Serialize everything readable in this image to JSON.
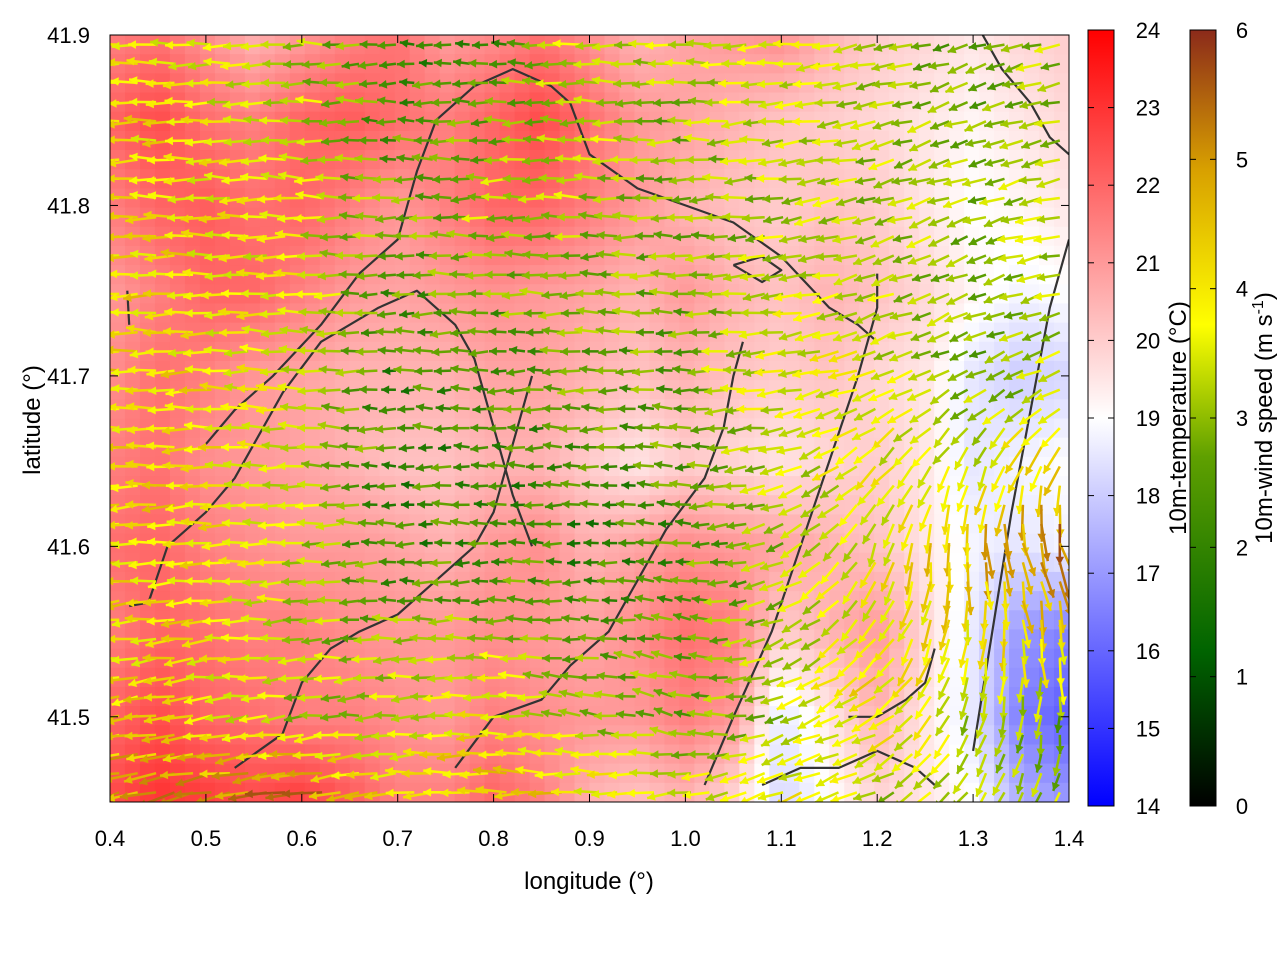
{
  "chart_data": {
    "type": "heatmap",
    "overlay": "wind-vector-field",
    "xlabel": "longitude (°)",
    "ylabel": "latitude (°)",
    "xlim": [
      0.4,
      1.4
    ],
    "ylim": [
      41.45,
      41.9
    ],
    "x_ticks": [
      "0.4",
      "0.5",
      "0.6",
      "0.7",
      "0.8",
      "0.9",
      "1.0",
      "1.1",
      "1.2",
      "1.3",
      "1.4"
    ],
    "y_ticks": [
      "41.5",
      "41.6",
      "41.7",
      "41.8",
      "41.9"
    ],
    "temperature_colorbar": {
      "label": "10m-temperature (°C)",
      "range": [
        14,
        24
      ],
      "ticks": [
        "14",
        "15",
        "16",
        "17",
        "18",
        "19",
        "20",
        "21",
        "22",
        "23",
        "24"
      ],
      "colors": [
        "#0000ff",
        "#ffffff",
        "#ff0000"
      ]
    },
    "wind_colorbar": {
      "label": "10m-wind speed (m s-1)",
      "label_main": "10m-wind speed (m s",
      "label_sup": "-1",
      "label_end": ")",
      "range": [
        0,
        6
      ],
      "ticks": [
        "0",
        "1",
        "2",
        "3",
        "4",
        "5",
        "6"
      ],
      "colors": [
        "#000000",
        "#006400",
        "#5fa000",
        "#ffff00",
        "#d8a000",
        "#8b2a1a"
      ]
    },
    "temperature_field": {
      "lon": [
        0.4,
        0.45,
        0.5,
        0.55,
        0.6,
        0.65,
        0.7,
        0.75,
        0.8,
        0.85,
        0.9,
        0.95,
        1.0,
        1.05,
        1.1,
        1.15,
        1.2,
        1.25,
        1.3,
        1.35,
        1.4
      ],
      "lat": [
        41.9,
        41.85,
        41.8,
        41.75,
        41.7,
        41.65,
        41.6,
        41.55,
        41.5,
        41.45
      ],
      "values": [
        [
          21.5,
          21.8,
          21.2,
          20.5,
          21.0,
          21.5,
          21.8,
          21.0,
          21.3,
          21.8,
          21.2,
          20.5,
          20.8,
          21.0,
          21.2,
          20.5,
          20.0,
          19.8,
          19.5,
          19.8,
          20.0
        ],
        [
          22.0,
          22.5,
          21.8,
          21.5,
          22.0,
          22.2,
          21.8,
          21.5,
          22.0,
          22.5,
          21.8,
          21.0,
          20.8,
          20.5,
          20.2,
          20.0,
          19.8,
          19.5,
          19.2,
          19.5,
          19.8
        ],
        [
          21.5,
          22.0,
          22.2,
          21.8,
          22.0,
          21.5,
          21.0,
          21.5,
          22.0,
          22.0,
          21.5,
          21.0,
          20.5,
          20.2,
          20.0,
          20.2,
          20.0,
          19.5,
          19.0,
          19.2,
          19.5
        ],
        [
          21.0,
          21.5,
          22.0,
          22.0,
          21.5,
          21.0,
          20.8,
          21.0,
          21.2,
          21.0,
          20.8,
          20.5,
          21.0,
          20.5,
          20.2,
          20.5,
          20.2,
          19.8,
          19.2,
          18.8,
          19.0
        ],
        [
          21.2,
          21.8,
          21.5,
          21.0,
          20.8,
          20.5,
          20.5,
          20.5,
          20.8,
          20.8,
          20.5,
          20.2,
          20.5,
          20.2,
          20.0,
          20.2,
          19.8,
          19.5,
          18.5,
          18.0,
          18.2
        ],
        [
          21.5,
          21.8,
          21.2,
          21.0,
          20.8,
          20.5,
          20.2,
          20.2,
          20.5,
          20.5,
          20.0,
          19.5,
          20.0,
          19.8,
          19.5,
          19.8,
          20.0,
          19.5,
          18.5,
          18.8,
          19.0
        ],
        [
          21.8,
          22.0,
          21.5,
          21.2,
          21.0,
          21.0,
          20.8,
          20.5,
          21.0,
          21.2,
          20.5,
          20.8,
          21.2,
          21.0,
          20.8,
          20.5,
          20.2,
          19.5,
          18.8,
          18.5,
          18.8
        ],
        [
          21.5,
          22.0,
          21.8,
          21.5,
          21.5,
          21.2,
          21.0,
          21.0,
          21.2,
          21.0,
          20.8,
          21.2,
          21.8,
          21.5,
          20.0,
          20.5,
          21.0,
          19.8,
          18.5,
          17.0,
          16.5
        ],
        [
          22.0,
          22.5,
          22.0,
          21.8,
          21.5,
          21.5,
          21.2,
          21.0,
          21.5,
          21.2,
          21.0,
          21.0,
          21.5,
          21.0,
          18.5,
          19.5,
          20.5,
          19.5,
          18.5,
          16.5,
          15.8
        ],
        [
          22.5,
          23.0,
          22.8,
          22.5,
          22.8,
          22.2,
          21.5,
          21.5,
          22.0,
          21.5,
          20.5,
          20.2,
          20.5,
          19.8,
          18.2,
          19.0,
          19.8,
          19.5,
          19.0,
          17.5,
          17.0
        ]
      ]
    },
    "wind_field": {
      "lon": [
        0.4,
        0.5,
        0.6,
        0.7,
        0.8,
        0.9,
        1.0,
        1.1,
        1.2,
        1.3,
        1.4
      ],
      "lat": [
        41.9,
        41.8,
        41.7,
        41.6,
        41.5,
        41.45
      ],
      "speed": [
        [
          4.0,
          3.5,
          3.0,
          2.0,
          2.0,
          3.5,
          3.0,
          3.5,
          3.0,
          2.5,
          3.0
        ],
        [
          4.0,
          3.8,
          3.5,
          2.5,
          3.0,
          3.0,
          2.5,
          3.0,
          3.0,
          2.8,
          3.0
        ],
        [
          4.0,
          3.8,
          3.5,
          2.0,
          2.0,
          2.5,
          2.5,
          3.5,
          3.5,
          2.5,
          3.0
        ],
        [
          3.8,
          4.0,
          3.2,
          2.0,
          2.0,
          1.8,
          2.2,
          2.8,
          3.5,
          4.5,
          5.5
        ],
        [
          4.0,
          3.8,
          3.0,
          3.2,
          3.8,
          3.0,
          2.5,
          3.0,
          4.0,
          3.0,
          2.5
        ],
        [
          5.0,
          5.0,
          5.5,
          4.0,
          4.5,
          4.0,
          3.5,
          3.8,
          3.0,
          3.2,
          3.0
        ]
      ],
      "direction_deg": [
        [
          270,
          270,
          270,
          270,
          270,
          270,
          270,
          265,
          260,
          250,
          260
        ],
        [
          270,
          270,
          272,
          270,
          270,
          270,
          270,
          265,
          255,
          250,
          260
        ],
        [
          270,
          270,
          272,
          270,
          270,
          270,
          270,
          265,
          250,
          245,
          250
        ],
        [
          265,
          268,
          270,
          270,
          270,
          270,
          275,
          250,
          200,
          170,
          160
        ],
        [
          260,
          262,
          265,
          268,
          270,
          275,
          285,
          250,
          240,
          200,
          180
        ],
        [
          255,
          258,
          260,
          265,
          270,
          270,
          260,
          250,
          250,
          220,
          200
        ]
      ]
    },
    "coastline_contours": [
      [
        [
          0.418,
          41.75
        ],
        [
          0.42,
          41.73
        ]
      ],
      [
        [
          0.42,
          41.565
        ],
        [
          0.44,
          41.567
        ],
        [
          0.46,
          41.6
        ],
        [
          0.48,
          41.61
        ],
        [
          0.5,
          41.62
        ],
        [
          0.53,
          41.64
        ],
        [
          0.55,
          41.66
        ],
        [
          0.58,
          41.69
        ],
        [
          0.62,
          41.72
        ],
        [
          0.68,
          41.74
        ],
        [
          0.72,
          41.75
        ],
        [
          0.76,
          41.73
        ],
        [
          0.78,
          41.71
        ],
        [
          0.8,
          41.67
        ],
        [
          0.82,
          41.63
        ],
        [
          0.84,
          41.6
        ]
      ],
      [
        [
          0.5,
          41.66
        ],
        [
          0.53,
          41.68
        ],
        [
          0.57,
          41.7
        ],
        [
          0.62,
          41.73
        ],
        [
          0.66,
          41.76
        ],
        [
          0.7,
          41.78
        ],
        [
          0.72,
          41.82
        ],
        [
          0.74,
          41.85
        ],
        [
          0.78,
          41.87
        ],
        [
          0.82,
          41.88
        ],
        [
          0.86,
          41.87
        ],
        [
          0.88,
          41.86
        ],
        [
          0.9,
          41.83
        ],
        [
          0.95,
          41.81
        ],
        [
          1.0,
          41.8
        ],
        [
          1.05,
          41.79
        ],
        [
          1.1,
          41.77
        ],
        [
          1.15,
          41.74
        ],
        [
          1.18,
          41.73
        ],
        [
          1.2,
          41.72
        ]
      ],
      [
        [
          0.53,
          41.47
        ],
        [
          0.58,
          41.49
        ],
        [
          0.6,
          41.52
        ],
        [
          0.63,
          41.54
        ],
        [
          0.66,
          41.55
        ],
        [
          0.7,
          41.56
        ],
        [
          0.74,
          41.58
        ],
        [
          0.78,
          41.6
        ],
        [
          0.8,
          41.62
        ],
        [
          0.82,
          41.66
        ],
        [
          0.84,
          41.7
        ]
      ],
      [
        [
          0.76,
          41.47
        ],
        [
          0.8,
          41.5
        ],
        [
          0.85,
          41.51
        ],
        [
          0.88,
          41.53
        ],
        [
          0.92,
          41.55
        ],
        [
          0.95,
          41.58
        ],
        [
          0.98,
          41.61
        ],
        [
          1.02,
          41.64
        ],
        [
          1.04,
          41.67
        ],
        [
          1.05,
          41.7
        ],
        [
          1.06,
          41.72
        ]
      ],
      [
        [
          1.02,
          41.46
        ],
        [
          1.05,
          41.5
        ],
        [
          1.09,
          41.55
        ],
        [
          1.12,
          41.6
        ],
        [
          1.15,
          41.65
        ],
        [
          1.18,
          41.7
        ],
        [
          1.2,
          41.74
        ],
        [
          1.2,
          41.76
        ]
      ],
      [
        [
          1.08,
          41.46
        ],
        [
          1.12,
          41.47
        ],
        [
          1.16,
          41.47
        ],
        [
          1.2,
          41.48
        ],
        [
          1.24,
          41.47
        ],
        [
          1.26,
          41.46
        ]
      ],
      [
        [
          1.17,
          41.5
        ],
        [
          1.2,
          41.5
        ],
        [
          1.23,
          41.51
        ],
        [
          1.25,
          41.52
        ],
        [
          1.26,
          41.54
        ]
      ],
      [
        [
          1.3,
          41.48
        ],
        [
          1.32,
          41.55
        ],
        [
          1.34,
          41.62
        ],
        [
          1.36,
          41.68
        ],
        [
          1.38,
          41.74
        ],
        [
          1.4,
          41.78
        ]
      ],
      [
        [
          1.31,
          41.9
        ],
        [
          1.33,
          41.88
        ],
        [
          1.36,
          41.86
        ],
        [
          1.38,
          41.84
        ],
        [
          1.4,
          41.83
        ]
      ],
      [
        [
          1.05,
          41.765
        ],
        [
          1.08,
          41.77
        ],
        [
          1.1,
          41.762
        ],
        [
          1.08,
          41.755
        ],
        [
          1.05,
          41.765
        ]
      ]
    ]
  }
}
